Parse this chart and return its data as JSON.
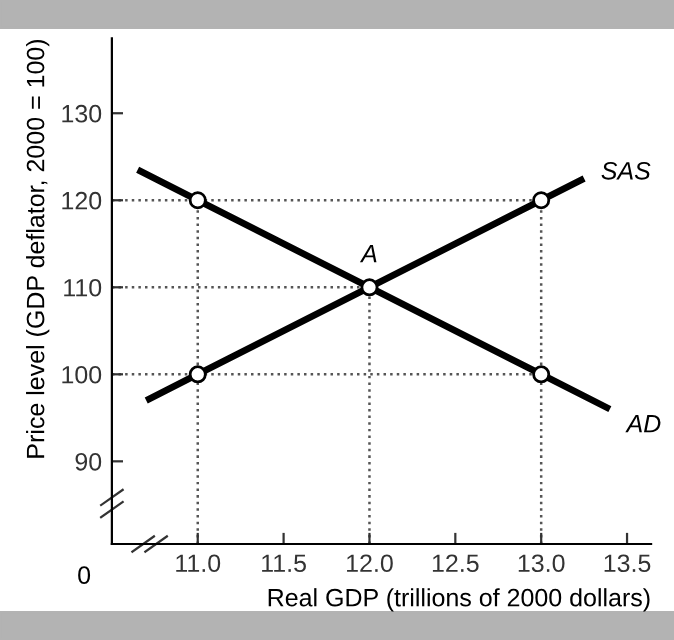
{
  "chart_data": {
    "type": "line",
    "xlabel": "Real GDP (trillions of 2000 dollars)",
    "ylabel": "Price level (GDP deflator, 2000 = 100)",
    "series": [
      {
        "name": "AD",
        "color": "#000000",
        "x": [
          10.65,
          11,
          12,
          13,
          13.4
        ],
        "values": [
          123.5,
          120,
          110,
          100,
          96
        ]
      },
      {
        "name": "SAS",
        "color": "#000000",
        "x": [
          10.7,
          11,
          12,
          13,
          13.25
        ],
        "values": [
          97,
          100,
          110,
          120,
          122.5
        ]
      },
      {
        "type": "scatter",
        "color": "#000000",
        "marker": "circle",
        "x": [
          11,
          11,
          12,
          13,
          13
        ],
        "values": [
          120,
          100,
          110,
          120,
          100
        ]
      },
      {
        "color": "#555555",
        "line_style": "dotted",
        "x": [
          10.5,
          13
        ],
        "values": [
          120,
          120
        ]
      },
      {
        "color": "#555555",
        "line_style": "dotted",
        "x": [
          10.5,
          12
        ],
        "values": [
          110,
          110
        ]
      },
      {
        "color": "#555555",
        "line_style": "dotted",
        "x": [
          10.5,
          13
        ],
        "values": [
          100,
          100
        ]
      },
      {
        "color": "#555555",
        "line_style": "dotted",
        "x": [
          11,
          11
        ],
        "values": [
          80.5,
          120
        ]
      },
      {
        "color": "#555555",
        "line_style": "dotted",
        "x": [
          12,
          12
        ],
        "values": [
          80.5,
          110
        ]
      },
      {
        "color": "#555555",
        "line_style": "dotted",
        "x": [
          13,
          13
        ],
        "values": [
          80.5,
          120
        ]
      }
    ],
    "annotations": [
      {
        "text": "A",
        "x": 12,
        "y": 110
      },
      "0"
    ],
    "xlim": [
      10.5,
      13.64
    ],
    "ylim": [
      80.5,
      138.6
    ],
    "xticks": [
      {
        "value": 11,
        "label": "11.0"
      },
      {
        "value": 11.5,
        "label": "11.5"
      },
      {
        "value": 12,
        "label": "12.0"
      },
      {
        "value": 12.5,
        "label": "12.5"
      },
      {
        "value": 13,
        "label": "13.0"
      },
      {
        "value": 13.5,
        "label": "13.5"
      }
    ],
    "yticks": [
      90,
      100,
      110,
      120,
      130
    ],
    "grid": false,
    "legend": false,
    "line_style": "solid"
  }
}
